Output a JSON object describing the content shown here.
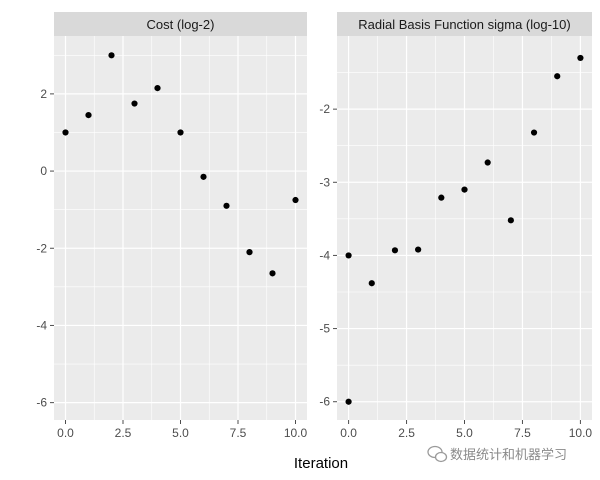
{
  "xlabel": "Iteration",
  "watermark": "数据统计和机器学习",
  "colors": {
    "panel_bg": "#ebebeb",
    "strip_bg": "#d9d9d9",
    "grid_major": "#ffffff",
    "point": "#000000",
    "tick": "#4d4d4d"
  },
  "chart_data": [
    {
      "type": "scatter",
      "title": "Cost (log-2)",
      "xlabel": "Iteration",
      "ylabel": "",
      "x": [
        0,
        1,
        2,
        3,
        4,
        5,
        6,
        7,
        8,
        9,
        10
      ],
      "y": [
        1.0,
        1.45,
        3.0,
        1.75,
        2.15,
        1.0,
        -0.15,
        -0.9,
        -2.1,
        -2.65,
        -0.75
      ],
      "x_ticks": [
        0,
        2.5,
        5,
        7.5,
        10
      ],
      "x_tick_labels": [
        "0.0",
        "2.5",
        "5.0",
        "7.5",
        "10.0"
      ],
      "y_ticks": [
        -6,
        -4,
        -2,
        0,
        2
      ],
      "y_tick_labels": [
        "-6",
        "-4",
        "-2",
        "0",
        "2"
      ],
      "xlim": [
        -0.5,
        10.5
      ],
      "ylim": [
        -6.45,
        3.5
      ],
      "grid": true,
      "legend": "none"
    },
    {
      "type": "scatter",
      "title": "Radial Basis Function sigma (log-10)",
      "xlabel": "Iteration",
      "ylabel": "",
      "x": [
        0,
        0,
        1,
        2,
        3,
        4,
        5,
        6,
        7,
        8,
        9,
        10
      ],
      "y": [
        -6.0,
        -4.0,
        -4.38,
        -3.93,
        -3.92,
        -3.21,
        -3.1,
        -2.73,
        -3.52,
        -2.32,
        -1.55,
        -1.3
      ],
      "x_ticks": [
        0,
        2.5,
        5,
        7.5,
        10
      ],
      "x_tick_labels": [
        "0.0",
        "2.5",
        "5.0",
        "7.5",
        "10.0"
      ],
      "y_ticks": [
        -6,
        -5,
        -4,
        -3,
        -2
      ],
      "y_tick_labels": [
        "-6",
        "-5",
        "-4",
        "-3",
        "-2"
      ],
      "xlim": [
        -0.5,
        10.5
      ],
      "ylim": [
        -6.25,
        -1.0
      ],
      "grid": true,
      "legend": "none"
    }
  ]
}
